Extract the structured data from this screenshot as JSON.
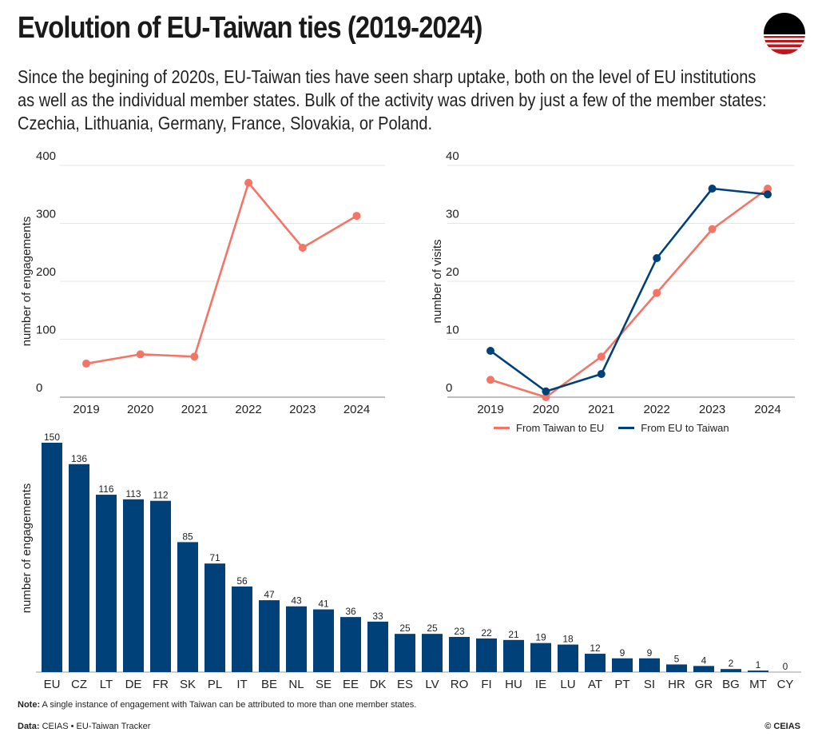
{
  "header": {
    "title": "Evolution of EU-Taiwan ties (2019-2024)",
    "subtitle": "Since the begining of 2020s, EU-Taiwan ties have seen sharp uptake, both on the level of EU institutions as well as the individual member states. Bulk of the activity was driven by just a few of the member states: Czechia, Lithuania, Germany, France, Slovakia, or Poland.",
    "logo_icon": "ceias-sunset-logo-icon"
  },
  "colors": {
    "salmon": "#f47566",
    "navy": "#00417a",
    "grid": "#e4e4e4",
    "axis": "#999999"
  },
  "chart_data": [
    {
      "type": "line",
      "title": "",
      "xlabel": "",
      "ylabel": "number of engagements",
      "x": [
        "2019",
        "2020",
        "2021",
        "2022",
        "2023",
        "2024"
      ],
      "series": [
        {
          "name": "Engagements",
          "values": [
            58,
            74,
            70,
            370,
            258,
            313
          ],
          "color": "#f47566"
        }
      ],
      "yticks": [
        0,
        100,
        200,
        300,
        400
      ],
      "ylim": [
        0,
        400
      ],
      "grid": true
    },
    {
      "type": "line",
      "title": "",
      "xlabel": "",
      "ylabel": "number of visits",
      "x": [
        "2019",
        "2020",
        "2021",
        "2022",
        "2023",
        "2024"
      ],
      "series": [
        {
          "name": "From Taiwan to EU",
          "values": [
            3,
            0,
            7,
            18,
            29,
            36
          ],
          "color": "#f47566"
        },
        {
          "name": "From EU to Taiwan",
          "values": [
            8,
            1,
            4,
            24,
            36,
            35
          ],
          "color": "#00417a"
        }
      ],
      "yticks": [
        0,
        10,
        20,
        30,
        40
      ],
      "ylim": [
        0,
        40
      ],
      "grid": true,
      "legend": "bottom"
    },
    {
      "type": "bar",
      "title": "",
      "xlabel": "",
      "ylabel": "number of engagements",
      "categories": [
        "EU",
        "CZ",
        "LT",
        "DE",
        "FR",
        "SK",
        "PL",
        "IT",
        "BE",
        "NL",
        "SE",
        "EE",
        "DK",
        "ES",
        "LV",
        "RO",
        "FI",
        "HU",
        "IE",
        "LU",
        "AT",
        "PT",
        "SI",
        "HR",
        "GR",
        "BG",
        "MT",
        "CY"
      ],
      "values": [
        150,
        136,
        116,
        113,
        112,
        85,
        71,
        56,
        47,
        43,
        41,
        36,
        33,
        25,
        25,
        23,
        22,
        21,
        19,
        18,
        12,
        9,
        9,
        5,
        4,
        2,
        1,
        0
      ],
      "ylim": [
        0,
        150
      ],
      "data_labels": true,
      "color": "#00417a"
    }
  ],
  "legend": {
    "items": [
      {
        "label": "From Taiwan to EU",
        "color": "#f47566"
      },
      {
        "label": "From EU to Taiwan",
        "color": "#00417a"
      }
    ]
  },
  "footer": {
    "note_label": "Note:",
    "note_text": " A single instance of engagement with Taiwan can be attributed to more than one member states.",
    "data_label": "Data:",
    "data_text": " CEIAS • EU-Taiwan Tracker",
    "copyright": "© CEIAS"
  }
}
